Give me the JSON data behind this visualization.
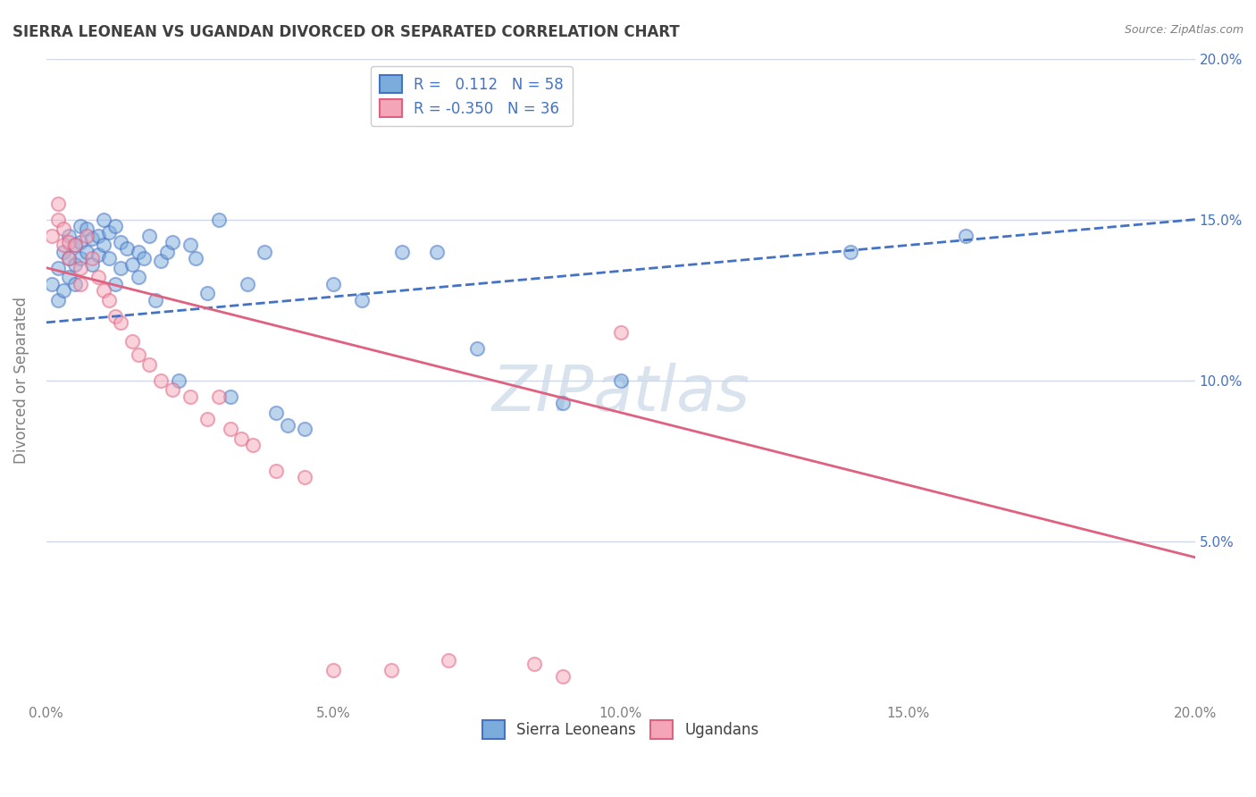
{
  "title": "SIERRA LEONEAN VS UGANDAN DIVORCED OR SEPARATED CORRELATION CHART",
  "source": "Source: ZipAtlas.com",
  "xlabel": "",
  "ylabel": "Divorced or Separated",
  "xlim": [
    0.0,
    0.2
  ],
  "ylim": [
    0.0,
    0.2
  ],
  "xticks": [
    0.0,
    0.05,
    0.1,
    0.15,
    0.2
  ],
  "yticks": [
    0.05,
    0.1,
    0.15,
    0.2
  ],
  "xtick_labels": [
    "0.0%",
    "5.0%",
    "10.0%",
    "15.0%",
    "20.0%"
  ],
  "ytick_labels": [
    "5.0%",
    "10.0%",
    "15.0%",
    "20.0%"
  ],
  "right_ytick_labels": [
    "5.0%",
    "10.0%",
    "15.0%",
    "20.0%"
  ],
  "legend_labels": [
    "Sierra Leoneans",
    "Ugandans"
  ],
  "R_blue": "0.112",
  "N_blue": "58",
  "R_pink": "-0.350",
  "N_pink": "36",
  "blue_color": "#7aaddc",
  "pink_color": "#f4a6b8",
  "trend_blue_color": "#4472c4",
  "trend_pink_color": "#e06080",
  "background_color": "#ffffff",
  "grid_color": "#d0d8e8",
  "title_color": "#404040",
  "axis_label_color": "#808080",
  "legend_text_color": "#404040",
  "R_value_color": "#4472c4",
  "watermark_color": "#c8d8e8",
  "blue_scatter_x": [
    0.001,
    0.002,
    0.002,
    0.003,
    0.003,
    0.004,
    0.004,
    0.004,
    0.005,
    0.005,
    0.005,
    0.006,
    0.006,
    0.006,
    0.007,
    0.007,
    0.008,
    0.008,
    0.009,
    0.009,
    0.01,
    0.01,
    0.011,
    0.011,
    0.012,
    0.012,
    0.013,
    0.013,
    0.014,
    0.015,
    0.016,
    0.016,
    0.017,
    0.018,
    0.019,
    0.02,
    0.021,
    0.022,
    0.023,
    0.025,
    0.026,
    0.028,
    0.03,
    0.032,
    0.035,
    0.038,
    0.04,
    0.042,
    0.045,
    0.05,
    0.055,
    0.062,
    0.068,
    0.075,
    0.09,
    0.1,
    0.14,
    0.16
  ],
  "blue_scatter_y": [
    0.13,
    0.135,
    0.125,
    0.14,
    0.128,
    0.145,
    0.138,
    0.132,
    0.142,
    0.136,
    0.13,
    0.148,
    0.143,
    0.138,
    0.147,
    0.14,
    0.144,
    0.136,
    0.145,
    0.139,
    0.15,
    0.142,
    0.146,
    0.138,
    0.148,
    0.13,
    0.143,
    0.135,
    0.141,
    0.136,
    0.14,
    0.132,
    0.138,
    0.145,
    0.125,
    0.137,
    0.14,
    0.143,
    0.1,
    0.142,
    0.138,
    0.127,
    0.15,
    0.095,
    0.13,
    0.14,
    0.09,
    0.086,
    0.085,
    0.13,
    0.125,
    0.14,
    0.14,
    0.11,
    0.093,
    0.1,
    0.14,
    0.145
  ],
  "pink_scatter_x": [
    0.001,
    0.002,
    0.002,
    0.003,
    0.003,
    0.004,
    0.004,
    0.005,
    0.006,
    0.006,
    0.007,
    0.008,
    0.009,
    0.01,
    0.011,
    0.012,
    0.013,
    0.015,
    0.016,
    0.018,
    0.02,
    0.022,
    0.025,
    0.028,
    0.03,
    0.032,
    0.034,
    0.036,
    0.04,
    0.045,
    0.05,
    0.06,
    0.07,
    0.1,
    0.085,
    0.09
  ],
  "pink_scatter_y": [
    0.145,
    0.15,
    0.155,
    0.142,
    0.147,
    0.143,
    0.138,
    0.142,
    0.135,
    0.13,
    0.145,
    0.138,
    0.132,
    0.128,
    0.125,
    0.12,
    0.118,
    0.112,
    0.108,
    0.105,
    0.1,
    0.097,
    0.095,
    0.088,
    0.095,
    0.085,
    0.082,
    0.08,
    0.072,
    0.07,
    0.01,
    0.01,
    0.013,
    0.115,
    0.012,
    0.008
  ],
  "blue_trend_x": [
    0.0,
    0.2
  ],
  "blue_trend_y": [
    0.118,
    0.15
  ],
  "pink_trend_x": [
    0.0,
    0.2
  ],
  "pink_trend_y": [
    0.135,
    0.045
  ],
  "marker_size": 120,
  "marker_alpha": 0.5,
  "marker_lw": 1.5
}
